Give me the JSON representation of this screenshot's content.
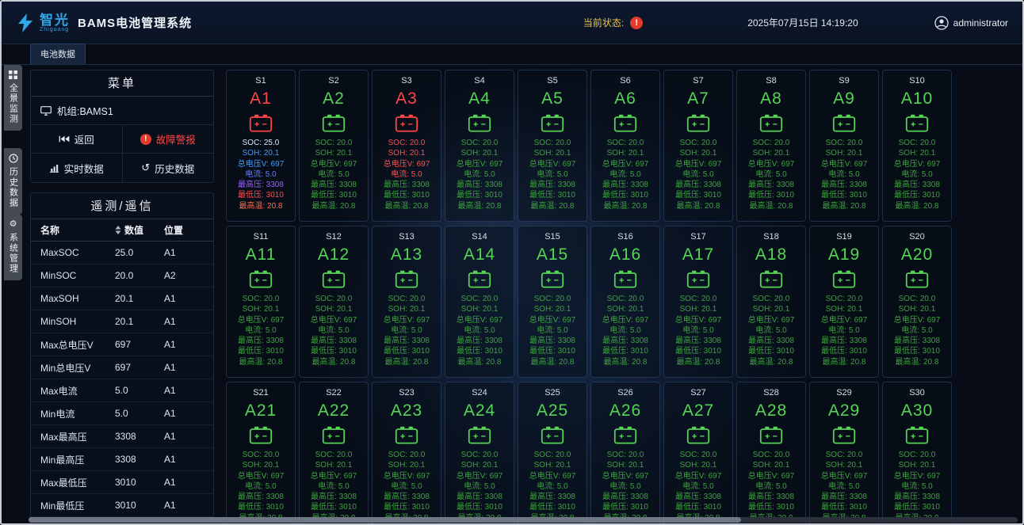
{
  "header": {
    "logo_text": "智光",
    "logo_sub": "Zhiguang",
    "app_title": "BAMS电池管理系统",
    "status_label": "当前状态:",
    "status_icon": "alert-exclamation",
    "datetime": "2025年07月15日 14:19:20",
    "user": "administrator"
  },
  "side_tabs": [
    {
      "label": "全景监测",
      "icon": "panorama-icon"
    },
    {
      "label": "历史数据",
      "icon": "history-icon"
    },
    {
      "label": "系统管理",
      "icon": "gear-icon"
    }
  ],
  "content_tab": "电池数据",
  "menu": {
    "title": "菜单",
    "unit": "机组:BAMS1",
    "back": "返回",
    "fault_alarm": "故障警报",
    "realtime": "实时数据",
    "history": "历史数据"
  },
  "telemetry": {
    "title": "遥测/遥信",
    "columns": [
      "名称",
      "数值",
      "位置"
    ],
    "rows": [
      [
        "MaxSOC",
        "25.0",
        "A1"
      ],
      [
        "MinSOC",
        "20.0",
        "A2"
      ],
      [
        "MaxSOH",
        "20.1",
        "A1"
      ],
      [
        "MinSOH",
        "20.1",
        "A1"
      ],
      [
        "Max总电压V",
        "697",
        "A1"
      ],
      [
        "Min总电压V",
        "697",
        "A1"
      ],
      [
        "Max电流",
        "5.0",
        "A1"
      ],
      [
        "Min电流",
        "5.0",
        "A1"
      ],
      [
        "Max最高压",
        "3308",
        "A1"
      ],
      [
        "Min最高压",
        "3308",
        "A1"
      ],
      [
        "Max最低压",
        "3010",
        "A1"
      ],
      [
        "Min最低压",
        "3010",
        "A1"
      ]
    ]
  },
  "card_defaults": {
    "stats": [
      "SOC: 20.0",
      "SOH: 20.1",
      "总电压V: 697",
      "电流: 5.0",
      "最高压: 3308",
      "最低压: 3010",
      "最高温: 20.8"
    ]
  },
  "colors": {
    "alarm": "#ff4545",
    "normal": "#55d455",
    "normal_stat": "#3ba33b",
    "accent": "#2ea6e8",
    "status_label": "#f0c23f"
  },
  "cards": [
    {
      "s": "S1",
      "a": "A1",
      "status": "alarm",
      "stats": [
        "SOC: 25.0",
        "SOH: 20.1",
        "总电压V: 697",
        "电流: 5.0",
        "最高压: 3308",
        "最低压: 3010",
        "最高温: 20.8"
      ],
      "stat_colors": [
        "#dce6f8",
        "#3f9bff",
        "#3f9bff",
        "#5f7bff",
        "#9a5fff",
        "#ff4d4d",
        "#ff6a50"
      ]
    },
    {
      "s": "S2",
      "a": "A2",
      "status": "normal"
    },
    {
      "s": "S3",
      "a": "A3",
      "status": "alarm",
      "stat_colors": [
        "#ff4d4d",
        "#ff4d4d",
        "#ff4d4d",
        "#ff4d4d",
        "#3ba33b",
        "#3ba33b",
        "#3ba33b"
      ]
    },
    {
      "s": "S4",
      "a": "A4",
      "status": "normal"
    },
    {
      "s": "S5",
      "a": "A5",
      "status": "normal"
    },
    {
      "s": "S6",
      "a": "A6",
      "status": "normal"
    },
    {
      "s": "S7",
      "a": "A7",
      "status": "normal"
    },
    {
      "s": "S8",
      "a": "A8",
      "status": "normal"
    },
    {
      "s": "S9",
      "a": "A9",
      "status": "normal"
    },
    {
      "s": "S10",
      "a": "A10",
      "status": "normal"
    },
    {
      "s": "S11",
      "a": "A11",
      "status": "normal"
    },
    {
      "s": "S12",
      "a": "A12",
      "status": "normal"
    },
    {
      "s": "S13",
      "a": "A13",
      "status": "normal"
    },
    {
      "s": "S14",
      "a": "A14",
      "status": "normal"
    },
    {
      "s": "S15",
      "a": "A15",
      "status": "normal"
    },
    {
      "s": "S16",
      "a": "A16",
      "status": "normal"
    },
    {
      "s": "S17",
      "a": "A17",
      "status": "normal"
    },
    {
      "s": "S18",
      "a": "A18",
      "status": "normal"
    },
    {
      "s": "S19",
      "a": "A19",
      "status": "normal"
    },
    {
      "s": "S20",
      "a": "A20",
      "status": "normal"
    },
    {
      "s": "S21",
      "a": "A21",
      "status": "normal"
    },
    {
      "s": "S22",
      "a": "A22",
      "status": "normal"
    },
    {
      "s": "S23",
      "a": "A23",
      "status": "normal"
    },
    {
      "s": "S24",
      "a": "A24",
      "status": "normal"
    },
    {
      "s": "S25",
      "a": "A25",
      "status": "normal"
    },
    {
      "s": "S26",
      "a": "A26",
      "status": "normal"
    },
    {
      "s": "S27",
      "a": "A27",
      "status": "normal"
    },
    {
      "s": "S28",
      "a": "A28",
      "status": "normal"
    },
    {
      "s": "S29",
      "a": "A29",
      "status": "normal"
    },
    {
      "s": "S30",
      "a": "A30",
      "status": "normal"
    }
  ]
}
